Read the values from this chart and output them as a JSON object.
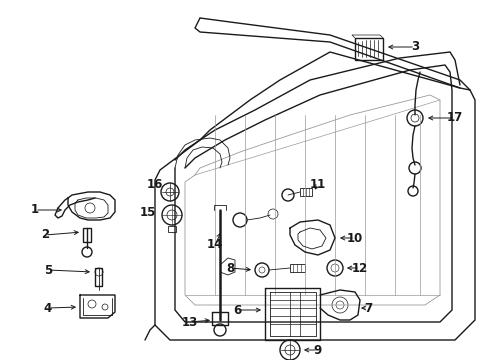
{
  "background_color": "#ffffff",
  "figsize": [
    4.89,
    3.6
  ],
  "dpi": 100,
  "line_color": "#1a1a1a",
  "gray": "#999999",
  "light_gray": "#cccccc"
}
